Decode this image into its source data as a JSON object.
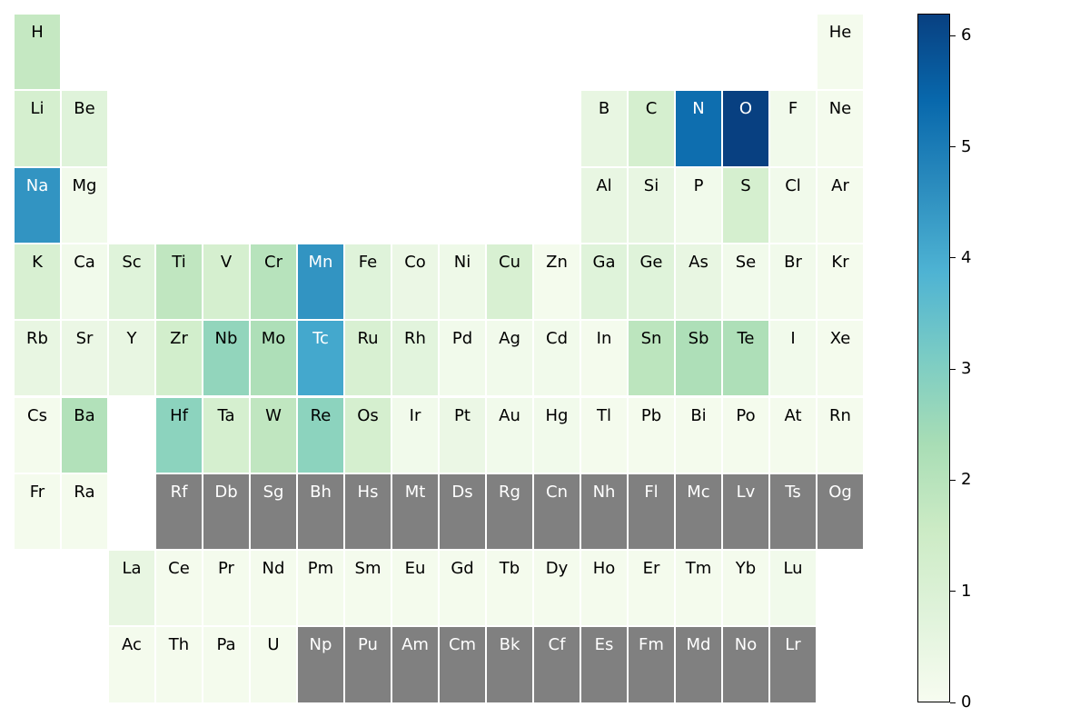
{
  "chart_data": {
    "type": "heatmap",
    "title": "",
    "colorbar": {
      "min": 0,
      "max": 6.2,
      "ticks": [
        "0",
        "1",
        "2",
        "3",
        "4",
        "5",
        "6"
      ],
      "tick_values": [
        0,
        1,
        2,
        3,
        4,
        5,
        6
      ],
      "colormap": "GnBu",
      "stops": [
        "#f7fcf0",
        "#e0f3db",
        "#ccebc5",
        "#a8ddb5",
        "#7bccc4",
        "#4eb3d3",
        "#2b8cbe",
        "#0868ac",
        "#084081"
      ]
    },
    "missing_color": "#808080",
    "elements": [
      {
        "symbol": "H",
        "row": 1,
        "col": 1,
        "value": 1.7
      },
      {
        "symbol": "He",
        "row": 1,
        "col": 18,
        "value": 0.1
      },
      {
        "symbol": "Li",
        "row": 2,
        "col": 1,
        "value": 1.2
      },
      {
        "symbol": "Be",
        "row": 2,
        "col": 2,
        "value": 0.8
      },
      {
        "symbol": "B",
        "row": 2,
        "col": 13,
        "value": 0.5
      },
      {
        "symbol": "C",
        "row": 2,
        "col": 14,
        "value": 1.2
      },
      {
        "symbol": "N",
        "row": 2,
        "col": 15,
        "value": 5.3
      },
      {
        "symbol": "O",
        "row": 2,
        "col": 16,
        "value": 6.2
      },
      {
        "symbol": "F",
        "row": 2,
        "col": 17,
        "value": 0.2
      },
      {
        "symbol": "Ne",
        "row": 2,
        "col": 18,
        "value": 0.1
      },
      {
        "symbol": "Na",
        "row": 3,
        "col": 1,
        "value": 4.5
      },
      {
        "symbol": "Mg",
        "row": 3,
        "col": 2,
        "value": 0.2
      },
      {
        "symbol": "Al",
        "row": 3,
        "col": 13,
        "value": 0.5
      },
      {
        "symbol": "Si",
        "row": 3,
        "col": 14,
        "value": 0.5
      },
      {
        "symbol": "P",
        "row": 3,
        "col": 15,
        "value": 0.2
      },
      {
        "symbol": "S",
        "row": 3,
        "col": 16,
        "value": 1.2
      },
      {
        "symbol": "Cl",
        "row": 3,
        "col": 17,
        "value": 0.2
      },
      {
        "symbol": "Ar",
        "row": 3,
        "col": 18,
        "value": 0.1
      },
      {
        "symbol": "K",
        "row": 4,
        "col": 1,
        "value": 1.1
      },
      {
        "symbol": "Ca",
        "row": 4,
        "col": 2,
        "value": 0.2
      },
      {
        "symbol": "Sc",
        "row": 4,
        "col": 3,
        "value": 0.8
      },
      {
        "symbol": "Ti",
        "row": 4,
        "col": 4,
        "value": 1.8
      },
      {
        "symbol": "V",
        "row": 4,
        "col": 5,
        "value": 1.2
      },
      {
        "symbol": "Cr",
        "row": 4,
        "col": 6,
        "value": 2.0
      },
      {
        "symbol": "Mn",
        "row": 4,
        "col": 7,
        "value": 4.5
      },
      {
        "symbol": "Fe",
        "row": 4,
        "col": 8,
        "value": 0.8
      },
      {
        "symbol": "Co",
        "row": 4,
        "col": 9,
        "value": 0.4
      },
      {
        "symbol": "Ni",
        "row": 4,
        "col": 10,
        "value": 0.3
      },
      {
        "symbol": "Cu",
        "row": 4,
        "col": 11,
        "value": 1.1
      },
      {
        "symbol": "Zn",
        "row": 4,
        "col": 12,
        "value": 0.1
      },
      {
        "symbol": "Ga",
        "row": 4,
        "col": 13,
        "value": 0.8
      },
      {
        "symbol": "Ge",
        "row": 4,
        "col": 14,
        "value": 0.8
      },
      {
        "symbol": "As",
        "row": 4,
        "col": 15,
        "value": 0.5
      },
      {
        "symbol": "Se",
        "row": 4,
        "col": 16,
        "value": 0.2
      },
      {
        "symbol": "Br",
        "row": 4,
        "col": 17,
        "value": 0.2
      },
      {
        "symbol": "Kr",
        "row": 4,
        "col": 18,
        "value": 0.1
      },
      {
        "symbol": "Rb",
        "row": 5,
        "col": 1,
        "value": 0.5
      },
      {
        "symbol": "Sr",
        "row": 5,
        "col": 2,
        "value": 0.4
      },
      {
        "symbol": "Y",
        "row": 5,
        "col": 3,
        "value": 0.5
      },
      {
        "symbol": "Zr",
        "row": 5,
        "col": 4,
        "value": 1.3
      },
      {
        "symbol": "Nb",
        "row": 5,
        "col": 5,
        "value": 2.7
      },
      {
        "symbol": "Mo",
        "row": 5,
        "col": 6,
        "value": 2.2
      },
      {
        "symbol": "Tc",
        "row": 5,
        "col": 7,
        "value": 4.1
      },
      {
        "symbol": "Ru",
        "row": 5,
        "col": 8,
        "value": 1.1
      },
      {
        "symbol": "Rh",
        "row": 5,
        "col": 9,
        "value": 0.7
      },
      {
        "symbol": "Pd",
        "row": 5,
        "col": 10,
        "value": 0.2
      },
      {
        "symbol": "Ag",
        "row": 5,
        "col": 11,
        "value": 0.2
      },
      {
        "symbol": "Cd",
        "row": 5,
        "col": 12,
        "value": 0.2
      },
      {
        "symbol": "In",
        "row": 5,
        "col": 13,
        "value": 0.1
      },
      {
        "symbol": "Sn",
        "row": 5,
        "col": 14,
        "value": 1.9
      },
      {
        "symbol": "Sb",
        "row": 5,
        "col": 15,
        "value": 2.2
      },
      {
        "symbol": "Te",
        "row": 5,
        "col": 16,
        "value": 2.2
      },
      {
        "symbol": "I",
        "row": 5,
        "col": 17,
        "value": 0.2
      },
      {
        "symbol": "Xe",
        "row": 5,
        "col": 18,
        "value": 0.1
      },
      {
        "symbol": "Cs",
        "row": 6,
        "col": 1,
        "value": 0.1
      },
      {
        "symbol": "Ba",
        "row": 6,
        "col": 2,
        "value": 2.1
      },
      {
        "symbol": "Hf",
        "row": 6,
        "col": 4,
        "value": 2.8
      },
      {
        "symbol": "Ta",
        "row": 6,
        "col": 5,
        "value": 1.2
      },
      {
        "symbol": "W",
        "row": 6,
        "col": 6,
        "value": 1.8
      },
      {
        "symbol": "Re",
        "row": 6,
        "col": 7,
        "value": 2.8
      },
      {
        "symbol": "Os",
        "row": 6,
        "col": 8,
        "value": 1.2
      },
      {
        "symbol": "Ir",
        "row": 6,
        "col": 9,
        "value": 0.2
      },
      {
        "symbol": "Pt",
        "row": 6,
        "col": 10,
        "value": 0.4
      },
      {
        "symbol": "Au",
        "row": 6,
        "col": 11,
        "value": 0.2
      },
      {
        "symbol": "Hg",
        "row": 6,
        "col": 12,
        "value": 0.2
      },
      {
        "symbol": "Tl",
        "row": 6,
        "col": 13,
        "value": 0.1
      },
      {
        "symbol": "Pb",
        "row": 6,
        "col": 14,
        "value": 0.1
      },
      {
        "symbol": "Bi",
        "row": 6,
        "col": 15,
        "value": 0.1
      },
      {
        "symbol": "Po",
        "row": 6,
        "col": 16,
        "value": 0.1
      },
      {
        "symbol": "At",
        "row": 6,
        "col": 17,
        "value": 0.1
      },
      {
        "symbol": "Rn",
        "row": 6,
        "col": 18,
        "value": 0.1
      },
      {
        "symbol": "Fr",
        "row": 7,
        "col": 1,
        "value": 0.1
      },
      {
        "symbol": "Ra",
        "row": 7,
        "col": 2,
        "value": 0.1
      },
      {
        "symbol": "Rf",
        "row": 7,
        "col": 4,
        "value": null
      },
      {
        "symbol": "Db",
        "row": 7,
        "col": 5,
        "value": null
      },
      {
        "symbol": "Sg",
        "row": 7,
        "col": 6,
        "value": null
      },
      {
        "symbol": "Bh",
        "row": 7,
        "col": 7,
        "value": null
      },
      {
        "symbol": "Hs",
        "row": 7,
        "col": 8,
        "value": null
      },
      {
        "symbol": "Mt",
        "row": 7,
        "col": 9,
        "value": null
      },
      {
        "symbol": "Ds",
        "row": 7,
        "col": 10,
        "value": null
      },
      {
        "symbol": "Rg",
        "row": 7,
        "col": 11,
        "value": null
      },
      {
        "symbol": "Cn",
        "row": 7,
        "col": 12,
        "value": null
      },
      {
        "symbol": "Nh",
        "row": 7,
        "col": 13,
        "value": null
      },
      {
        "symbol": "Fl",
        "row": 7,
        "col": 14,
        "value": null
      },
      {
        "symbol": "Mc",
        "row": 7,
        "col": 15,
        "value": null
      },
      {
        "symbol": "Lv",
        "row": 7,
        "col": 16,
        "value": null
      },
      {
        "symbol": "Ts",
        "row": 7,
        "col": 17,
        "value": null
      },
      {
        "symbol": "Og",
        "row": 7,
        "col": 18,
        "value": null
      },
      {
        "symbol": "La",
        "row": 8,
        "col": 3,
        "value": 0.5
      },
      {
        "symbol": "Ce",
        "row": 8,
        "col": 4,
        "value": 0.1
      },
      {
        "symbol": "Pr",
        "row": 8,
        "col": 5,
        "value": 0.1
      },
      {
        "symbol": "Nd",
        "row": 8,
        "col": 6,
        "value": 0.1
      },
      {
        "symbol": "Pm",
        "row": 8,
        "col": 7,
        "value": 0.1
      },
      {
        "symbol": "Sm",
        "row": 8,
        "col": 8,
        "value": 0.1
      },
      {
        "symbol": "Eu",
        "row": 8,
        "col": 9,
        "value": 0.1
      },
      {
        "symbol": "Gd",
        "row": 8,
        "col": 10,
        "value": 0.1
      },
      {
        "symbol": "Tb",
        "row": 8,
        "col": 11,
        "value": 0.1
      },
      {
        "symbol": "Dy",
        "row": 8,
        "col": 12,
        "value": 0.1
      },
      {
        "symbol": "Ho",
        "row": 8,
        "col": 13,
        "value": 0.1
      },
      {
        "symbol": "Er",
        "row": 8,
        "col": 14,
        "value": 0.1
      },
      {
        "symbol": "Tm",
        "row": 8,
        "col": 15,
        "value": 0.1
      },
      {
        "symbol": "Yb",
        "row": 8,
        "col": 16,
        "value": 0.1
      },
      {
        "symbol": "Lu",
        "row": 8,
        "col": 17,
        "value": 0.2
      },
      {
        "symbol": "Ac",
        "row": 9,
        "col": 3,
        "value": 0.1
      },
      {
        "symbol": "Th",
        "row": 9,
        "col": 4,
        "value": 0.1
      },
      {
        "symbol": "Pa",
        "row": 9,
        "col": 5,
        "value": 0.1
      },
      {
        "symbol": "U",
        "row": 9,
        "col": 6,
        "value": 0.1
      },
      {
        "symbol": "Np",
        "row": 9,
        "col": 7,
        "value": null
      },
      {
        "symbol": "Pu",
        "row": 9,
        "col": 8,
        "value": null
      },
      {
        "symbol": "Am",
        "row": 9,
        "col": 9,
        "value": null
      },
      {
        "symbol": "Cm",
        "row": 9,
        "col": 10,
        "value": null
      },
      {
        "symbol": "Bk",
        "row": 9,
        "col": 11,
        "value": null
      },
      {
        "symbol": "Cf",
        "row": 9,
        "col": 12,
        "value": null
      },
      {
        "symbol": "Es",
        "row": 9,
        "col": 13,
        "value": null
      },
      {
        "symbol": "Fm",
        "row": 9,
        "col": 14,
        "value": null
      },
      {
        "symbol": "Md",
        "row": 9,
        "col": 15,
        "value": null
      },
      {
        "symbol": "No",
        "row": 9,
        "col": 16,
        "value": null
      },
      {
        "symbol": "Lr",
        "row": 9,
        "col": 17,
        "value": null
      }
    ]
  }
}
